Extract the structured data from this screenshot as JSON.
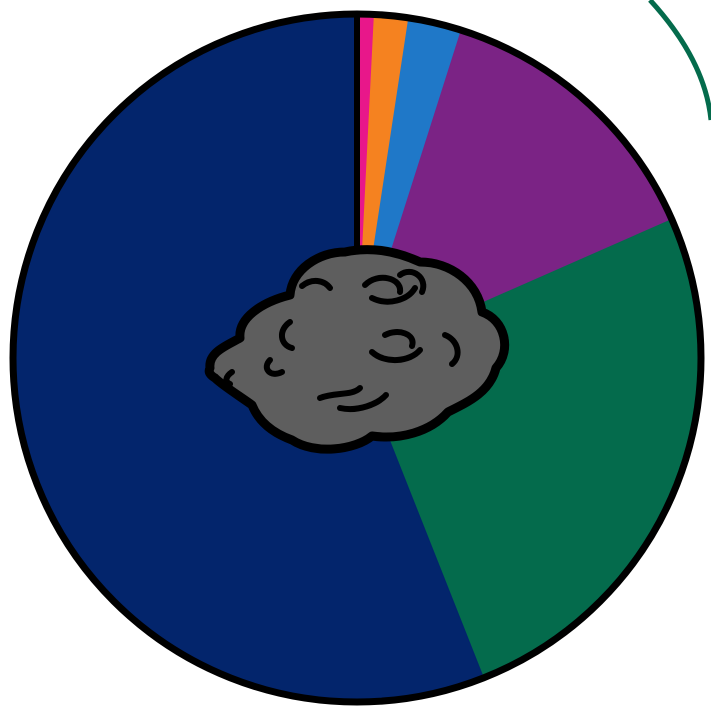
{
  "chart_data": {
    "type": "pie",
    "title": "",
    "start_angle_deg": 0,
    "direction": "clockwise",
    "legend": "none",
    "labels_shown": false,
    "slices": [
      {
        "value": 0.8,
        "color": "#e8178a"
      },
      {
        "value": 1.6,
        "color": "#f58220"
      },
      {
        "value": 2.5,
        "color": "#1f78c8"
      },
      {
        "value": 13.5,
        "color": "#7b2385"
      },
      {
        "value": 25.6,
        "color": "#046b4c"
      },
      {
        "value": 56.0,
        "color": "#03256c"
      }
    ]
  },
  "decoration": {
    "center_icon": "rock-icon",
    "rock_fill": "#5e5e5e",
    "outline": "#000000",
    "background_arc_color": "#046b4c"
  }
}
